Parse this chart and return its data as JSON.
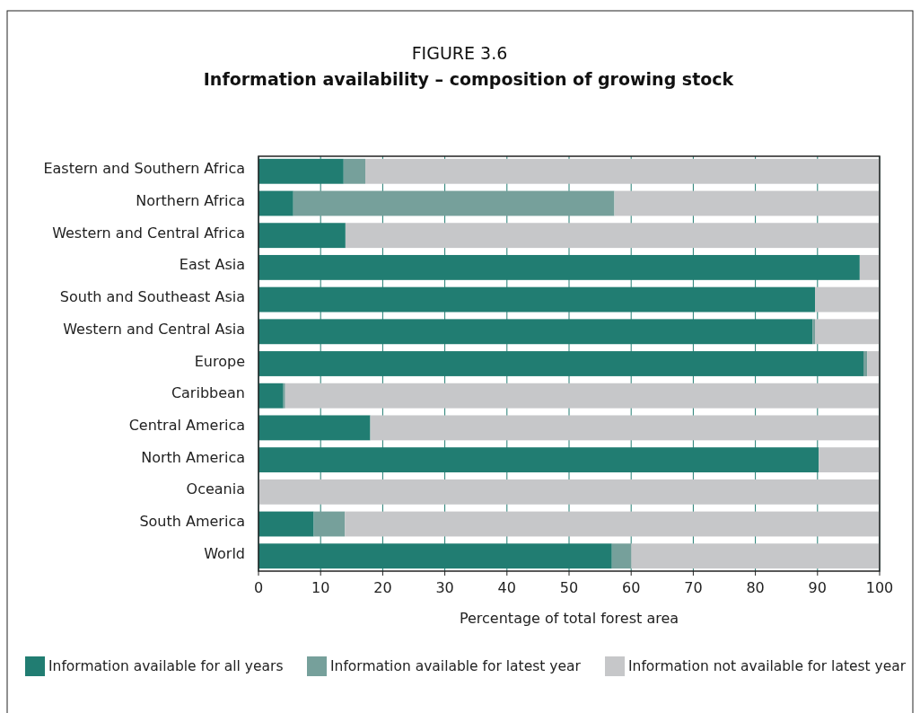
{
  "chart_data": {
    "type": "bar",
    "orientation": "horizontal",
    "stacked": true,
    "title": "FIGURE 3.6",
    "subtitle": "Information availability – composition of growing stock",
    "xlabel": "Percentage of total forest area",
    "categories": [
      "Eastern and Southern Africa",
      "Northern Africa",
      "Western and Central Africa",
      "East Asia",
      "South and Southeast Asia",
      "Western and Central Asia",
      "Europe",
      "Caribbean",
      "Central America",
      "North America",
      "Oceania",
      "South America",
      "World"
    ],
    "series": [
      {
        "name": "Information available for all years",
        "color": "#217d72",
        "values": [
          13.7,
          5.6,
          14,
          96.8,
          89.6,
          89.2,
          97.4,
          4,
          18,
          90.2,
          0,
          8.9,
          56.9
        ]
      },
      {
        "name": "Information available for latest year",
        "color": "#76a09b",
        "values": [
          3.5,
          51.7,
          0,
          0,
          0,
          0.4,
          0.6,
          0.3,
          0,
          0,
          0,
          5,
          3.1
        ]
      },
      {
        "name": "Information not available for latest year",
        "color": "#c6c7c9",
        "values": [
          82.8,
          42.7,
          86,
          3.2,
          10.4,
          10.4,
          2,
          95.7,
          82,
          9.8,
          100,
          86.1,
          40
        ]
      }
    ],
    "xlim": [
      0,
      100
    ],
    "xticks": [
      0,
      10,
      20,
      30,
      40,
      50,
      60,
      70,
      80,
      90,
      100
    ],
    "grid": "x",
    "legend": "bottom"
  }
}
